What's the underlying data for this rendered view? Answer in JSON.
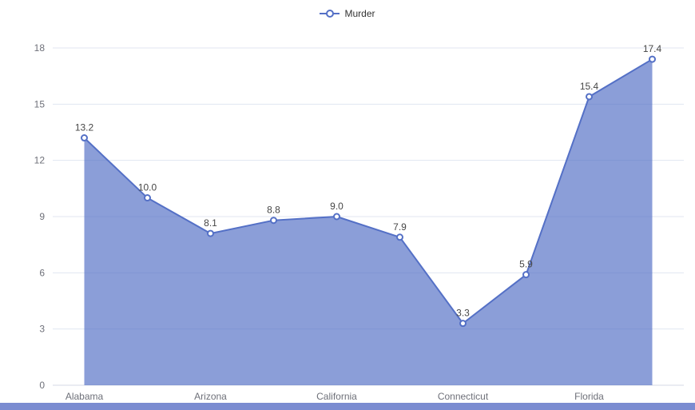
{
  "legend": {
    "items": [
      {
        "label": "Murder"
      }
    ]
  },
  "colors": {
    "line": "#5470c6",
    "area_fill": "#5470c6",
    "area_opacity": 0.68,
    "grid_line": "#e0e6f1",
    "axis_line": "#d4d9e4",
    "axis_label": "#6e7079",
    "data_label": "#464646",
    "bottom_bar": "#7b8cd1"
  },
  "chart_data": {
    "type": "area",
    "series": [
      {
        "name": "Murder",
        "values": [
          13.2,
          10.0,
          8.1,
          8.8,
          9.0,
          7.9,
          3.3,
          5.9,
          15.4,
          17.4
        ],
        "labels": [
          "13.2",
          "10.0",
          "8.1",
          "8.8",
          "9.0",
          "7.9",
          "3.3",
          "5.9",
          "15.4",
          "17.4"
        ]
      }
    ],
    "x_tick_labels": [
      "Alabama",
      "Arizona",
      "California",
      "Connecticut",
      "Florida"
    ],
    "x_tick_positions": [
      0,
      2,
      4,
      6,
      8
    ],
    "y_ticks": [
      0,
      3,
      6,
      9,
      12,
      15,
      18
    ],
    "ylim": [
      0,
      18
    ],
    "grid": true,
    "legend_position": "top-center"
  }
}
